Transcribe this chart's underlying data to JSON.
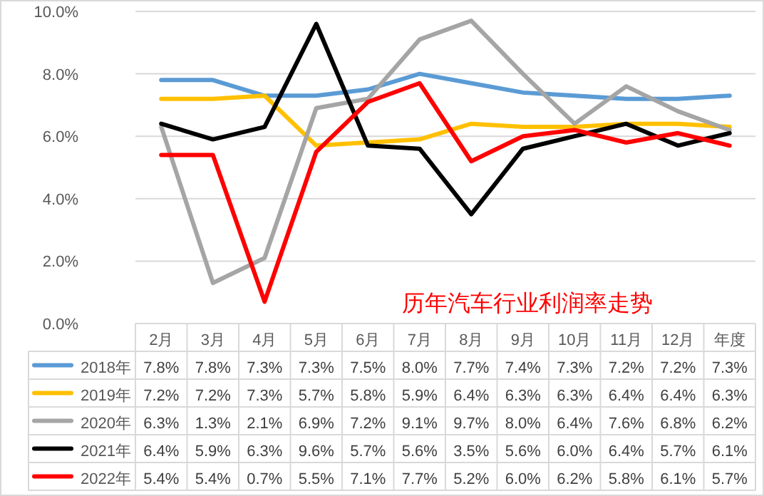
{
  "chart_data": {
    "type": "line",
    "title": "历年汽车行业利润率走势",
    "categories": [
      "2月",
      "3月",
      "4月",
      "5月",
      "6月",
      "7月",
      "8月",
      "9月",
      "10月",
      "11月",
      "12月",
      "年度"
    ],
    "ylim": [
      0,
      10
    ],
    "yticks": [
      {
        "value": 0,
        "label": "0.0%"
      },
      {
        "value": 2,
        "label": "2.0%"
      },
      {
        "value": 4,
        "label": "4.0%"
      },
      {
        "value": 6,
        "label": "6.0%"
      },
      {
        "value": 8,
        "label": "8.0%"
      },
      {
        "value": 10,
        "label": "10.0%"
      }
    ],
    "grid": "y",
    "legend": "bottom",
    "marker": "none",
    "line_style": "solid",
    "series": [
      {
        "name": "2018年",
        "color": "#5b9bd5",
        "values": [
          7.8,
          7.8,
          7.3,
          7.3,
          7.5,
          8.0,
          7.7,
          7.4,
          7.3,
          7.2,
          7.2,
          7.3
        ],
        "value_labels": [
          "7.8%",
          "7.8%",
          "7.3%",
          "7.3%",
          "7.5%",
          "8.0%",
          "7.7%",
          "7.4%",
          "7.3%",
          "7.2%",
          "7.2%",
          "7.3%"
        ]
      },
      {
        "name": "2019年",
        "color": "#ffc000",
        "values": [
          7.2,
          7.2,
          7.3,
          5.7,
          5.8,
          5.9,
          6.4,
          6.3,
          6.3,
          6.4,
          6.4,
          6.3
        ],
        "value_labels": [
          "7.2%",
          "7.2%",
          "7.3%",
          "5.7%",
          "5.8%",
          "5.9%",
          "6.4%",
          "6.3%",
          "6.3%",
          "6.4%",
          "6.4%",
          "6.3%"
        ]
      },
      {
        "name": "2020年",
        "color": "#a5a5a5",
        "values": [
          6.3,
          1.3,
          2.1,
          6.9,
          7.2,
          9.1,
          9.7,
          8.0,
          6.4,
          7.6,
          6.8,
          6.2
        ],
        "value_labels": [
          "6.3%",
          "1.3%",
          "2.1%",
          "6.9%",
          "7.2%",
          "9.1%",
          "9.7%",
          "8.0%",
          "6.4%",
          "7.6%",
          "6.8%",
          "6.2%"
        ]
      },
      {
        "name": "2021年",
        "color": "#000000",
        "values": [
          6.4,
          5.9,
          6.3,
          9.6,
          5.7,
          5.6,
          3.5,
          5.6,
          6.0,
          6.4,
          5.7,
          6.1
        ],
        "value_labels": [
          "6.4%",
          "5.9%",
          "6.3%",
          "9.6%",
          "5.7%",
          "5.6%",
          "3.5%",
          "5.6%",
          "6.0%",
          "6.4%",
          "5.7%",
          "6.1%"
        ]
      },
      {
        "name": "2022年",
        "color": "#ff0000",
        "values": [
          5.4,
          5.4,
          0.7,
          5.5,
          7.1,
          7.7,
          5.2,
          6.0,
          6.2,
          5.8,
          6.1,
          5.7
        ],
        "value_labels": [
          "5.4%",
          "5.4%",
          "0.7%",
          "5.5%",
          "7.1%",
          "7.7%",
          "5.2%",
          "6.0%",
          "6.2%",
          "5.8%",
          "6.1%",
          "5.7%"
        ]
      }
    ]
  }
}
